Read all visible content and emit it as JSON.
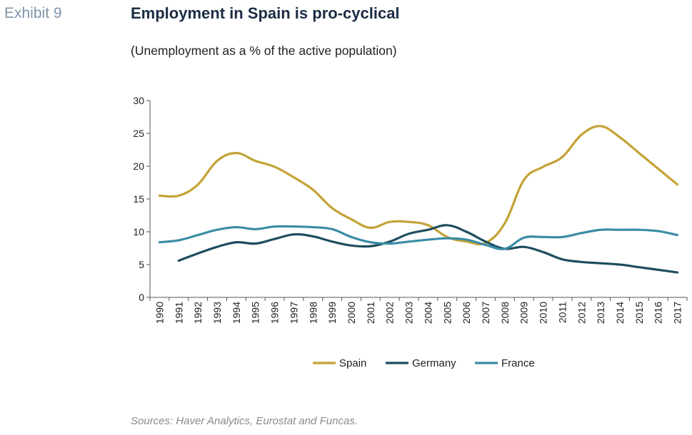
{
  "header": {
    "exhibit": "Exhibit 9",
    "title": "Employment in Spain is pro-cyclical",
    "subtitle": "(Unemployment as a % of the active population)"
  },
  "footer": {
    "source": "Sources: Haver Analytics, Eurostat and Funcas."
  },
  "chart_data": {
    "type": "line",
    "title": "Employment in Spain is pro-cyclical",
    "subtitle": "(Unemployment as a % of the active population)",
    "xlabel": "",
    "ylabel": "",
    "ylim": [
      0,
      30
    ],
    "yticks": [
      0,
      5,
      10,
      15,
      20,
      25,
      30
    ],
    "grid": false,
    "legend": "bottom",
    "x": [
      "1990",
      "1991",
      "1992",
      "1993",
      "1994",
      "1995",
      "1996",
      "1997",
      "1998",
      "1999",
      "2000",
      "2001",
      "2002",
      "2003",
      "2004",
      "2005",
      "2006",
      "2007",
      "2008",
      "2009",
      "2010",
      "2011",
      "2012",
      "2013",
      "2014",
      "2015",
      "2016",
      "2017"
    ],
    "series": [
      {
        "name": "Spain",
        "color": "#c4a235",
        "values": [
          15.5,
          15.5,
          17.2,
          20.8,
          22.0,
          20.8,
          19.9,
          18.3,
          16.4,
          13.6,
          11.9,
          10.6,
          11.5,
          11.5,
          11.0,
          9.2,
          8.5,
          8.3,
          11.3,
          17.9,
          19.9,
          21.4,
          24.8,
          26.1,
          24.4,
          22.0,
          19.6,
          17.2
        ]
      },
      {
        "name": "Germany",
        "color": "#1e4d5e",
        "values": [
          null,
          5.6,
          6.7,
          7.7,
          8.4,
          8.2,
          8.9,
          9.6,
          9.3,
          8.5,
          7.9,
          7.8,
          8.5,
          9.7,
          10.3,
          11.0,
          10.0,
          8.5,
          7.4,
          7.7,
          6.9,
          5.8,
          5.4,
          5.2,
          5.0,
          4.6,
          4.2,
          3.8
        ]
      },
      {
        "name": "France",
        "color": "#3a8ca6",
        "values": [
          8.4,
          8.7,
          9.5,
          10.3,
          10.7,
          10.4,
          10.8,
          10.8,
          10.7,
          10.4,
          9.2,
          8.4,
          8.2,
          8.5,
          8.8,
          9.0,
          8.8,
          8.0,
          7.4,
          9.1,
          9.2,
          9.2,
          9.8,
          10.3,
          10.3,
          10.3,
          10.1,
          9.5
        ]
      }
    ]
  }
}
